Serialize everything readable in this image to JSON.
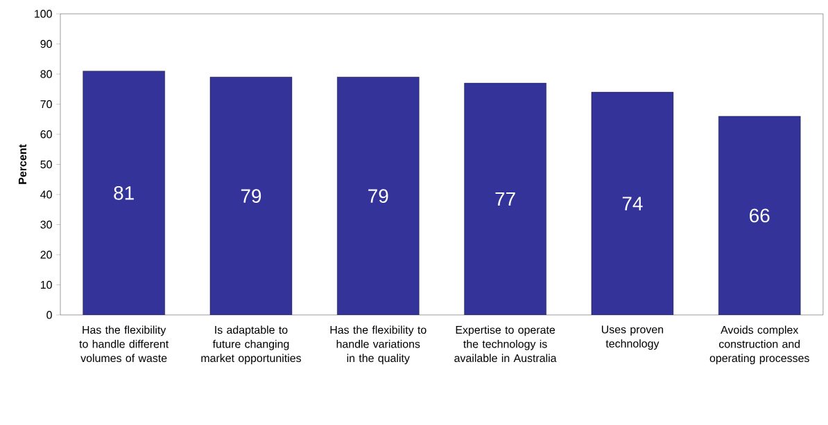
{
  "chart_data": {
    "type": "bar",
    "ylabel": "Percent",
    "categories": [
      "Has the flexibility to handle different volumes of waste",
      "Is adaptable to future changing market opportunities",
      "Has the flexibility to handle variations in the quality",
      "Expertise to operate the technology is available in Australia",
      "Uses proven technology",
      "Avoids complex construction and operating processes"
    ],
    "values": [
      81,
      79,
      79,
      77,
      74,
      66
    ],
    "color": "#333399",
    "ylim": [
      0,
      100
    ],
    "yticks": [
      0,
      10,
      20,
      30,
      40,
      50,
      60,
      70,
      80,
      90,
      100
    ],
    "data_labels": true
  }
}
